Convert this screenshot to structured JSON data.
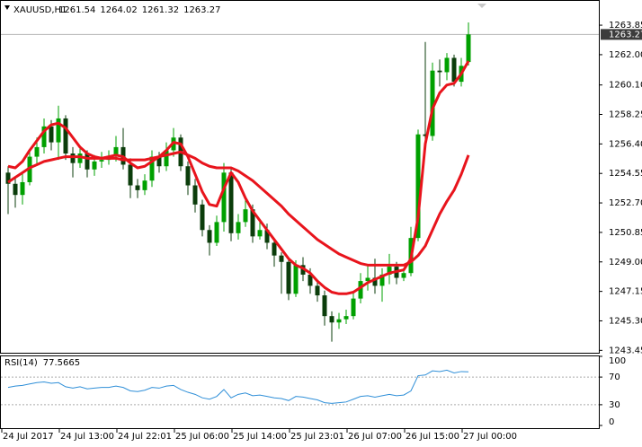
{
  "chart_data": {
    "type": "candlestick",
    "title": "XAUUSD,H1",
    "categories": [
      "24 Jul 2017",
      null,
      null,
      null,
      null,
      null,
      null,
      null,
      "24 Jul 13:00",
      null,
      null,
      null,
      null,
      null,
      null,
      null,
      "24 Jul 22:01",
      null,
      null,
      null,
      null,
      null,
      null,
      null,
      "25 Jul 06:00",
      null,
      null,
      null,
      null,
      null,
      null,
      null,
      "25 Jul 14:00",
      null,
      null,
      null,
      null,
      null,
      null,
      null,
      "25 Jul 23:01",
      null,
      null,
      null,
      null,
      null,
      null,
      null,
      "26 Jul 07:00",
      null,
      null,
      null,
      null,
      null,
      null,
      null,
      "26 Jul 15:00",
      null,
      null,
      null,
      null,
      null,
      null,
      null,
      "27 Jul 00:00"
    ],
    "open": [
      1254.6,
      1253.9,
      1253.2,
      1254.0,
      1255.6,
      1256.2,
      1257.5,
      1256.5,
      1258.0,
      1255.8,
      1255.2,
      1255.8,
      1254.8,
      1255.3,
      1255.4,
      1255.6,
      1256.2,
      1255.1,
      1253.8,
      1253.5,
      1254.1,
      1255.6,
      1255.0,
      1256.0,
      1256.8,
      1255.0,
      1253.8,
      1252.6,
      1251.0,
      1250.2,
      1251.5,
      1254.6,
      1250.8,
      1251.5,
      1252.3,
      1250.6,
      1251.0,
      1250.2,
      1249.4,
      1249.0,
      1247.0,
      1248.8,
      1248.2,
      1247.5,
      1246.9,
      1245.6,
      1245.2,
      1245.4,
      1245.6,
      1246.7,
      1247.8,
      1248.0,
      1247.5,
      1248.2,
      1248.7,
      1248.0,
      1248.3,
      1250.5,
      1257.0,
      1256.9,
      1261.0,
      1260.9,
      1261.8,
      1260.3,
      1261.54
    ],
    "high": [
      1255.0,
      1254.3,
      1254.6,
      1256.1,
      1256.8,
      1258.0,
      1257.9,
      1258.8,
      1258.2,
      1256.2,
      1256.3,
      1256.0,
      1255.7,
      1255.9,
      1256.0,
      1256.9,
      1257.4,
      1255.5,
      1254.2,
      1254.5,
      1256.0,
      1255.9,
      1256.5,
      1257.4,
      1257.0,
      1255.3,
      1254.2,
      1252.9,
      1251.3,
      1251.9,
      1255.2,
      1254.9,
      1252.0,
      1252.9,
      1252.6,
      1251.6,
      1251.4,
      1250.4,
      1249.6,
      1249.3,
      1249.1,
      1249.3,
      1248.6,
      1247.8,
      1247.2,
      1245.9,
      1245.8,
      1246.0,
      1247.1,
      1248.3,
      1248.8,
      1249.2,
      1248.6,
      1249.5,
      1249.0,
      1248.6,
      1251.2,
      1257.3,
      1262.8,
      1261.5,
      1261.7,
      1262.1,
      1262.0,
      1261.8,
      1264.02
    ],
    "low": [
      1252.0,
      1252.4,
      1252.6,
      1253.8,
      1255.1,
      1255.8,
      1256.0,
      1255.4,
      1255.4,
      1254.3,
      1254.9,
      1254.3,
      1254.4,
      1254.9,
      1255.1,
      1255.3,
      1254.8,
      1253.0,
      1253.0,
      1253.2,
      1253.7,
      1254.6,
      1254.7,
      1255.6,
      1254.7,
      1253.2,
      1252.1,
      1250.6,
      1249.4,
      1250.0,
      1250.9,
      1250.3,
      1250.4,
      1251.2,
      1250.2,
      1250.4,
      1249.8,
      1248.7,
      1247.0,
      1246.6,
      1246.8,
      1247.8,
      1247.0,
      1246.5,
      1245.0,
      1244.0,
      1244.8,
      1245.1,
      1245.4,
      1246.4,
      1247.2,
      1247.0,
      1246.5,
      1247.6,
      1247.6,
      1247.8,
      1248.1,
      1250.3,
      1256.3,
      1256.6,
      1260.0,
      1260.4,
      1260.0,
      1260.0,
      1261.32
    ],
    "close": [
      1253.9,
      1253.2,
      1254.0,
      1255.6,
      1256.2,
      1257.5,
      1256.5,
      1258.0,
      1255.8,
      1255.2,
      1255.8,
      1254.8,
      1255.3,
      1255.4,
      1255.6,
      1256.2,
      1255.1,
      1253.8,
      1253.5,
      1254.1,
      1255.6,
      1255.0,
      1256.0,
      1256.8,
      1255.0,
      1253.8,
      1252.6,
      1251.0,
      1250.2,
      1251.5,
      1254.6,
      1250.8,
      1251.5,
      1252.3,
      1250.6,
      1251.0,
      1250.2,
      1249.4,
      1249.0,
      1247.0,
      1248.8,
      1248.2,
      1247.5,
      1246.9,
      1245.6,
      1245.2,
      1245.4,
      1245.6,
      1246.7,
      1247.8,
      1248.0,
      1247.5,
      1248.2,
      1248.7,
      1248.0,
      1248.3,
      1250.5,
      1257.0,
      1256.9,
      1261.0,
      1260.9,
      1261.8,
      1260.3,
      1261.3,
      1263.27
    ],
    "up_color": "#00a000",
    "down_color": "#0b3d0b",
    "series": [
      {
        "color": "#e8141c",
        "values": [
          1255.0,
          1254.9,
          1255.3,
          1256.0,
          1256.6,
          1257.2,
          1257.6,
          1257.7,
          1257.4,
          1256.8,
          1256.2,
          1255.8,
          1255.6,
          1255.5,
          1255.6,
          1255.7,
          1255.6,
          1255.2,
          1254.9,
          1255.0,
          1255.3,
          1255.6,
          1256.0,
          1256.5,
          1256.4,
          1255.6,
          1254.5,
          1253.4,
          1252.6,
          1252.5,
          1253.6,
          1254.6,
          1254.0,
          1253.0,
          1252.2,
          1251.6,
          1251.0,
          1250.4,
          1249.8,
          1249.2,
          1248.8,
          1248.6,
          1248.3,
          1247.8,
          1247.4,
          1247.1,
          1247.0,
          1247.0,
          1247.1,
          1247.4,
          1247.7,
          1247.9,
          1248.1,
          1248.3,
          1248.4,
          1248.5,
          1249.2,
          1251.8,
          1256.4,
          1258.6,
          1259.6,
          1260.1,
          1260.2,
          1260.8,
          1261.6
        ]
      },
      {
        "color": "#e8141c",
        "values": [
          1254.0,
          1254.3,
          1254.6,
          1254.9,
          1255.1,
          1255.3,
          1255.4,
          1255.5,
          1255.6,
          1255.6,
          1255.6,
          1255.5,
          1255.5,
          1255.5,
          1255.5,
          1255.5,
          1255.4,
          1255.4,
          1255.4,
          1255.4,
          1255.5,
          1255.6,
          1255.7,
          1255.8,
          1255.9,
          1255.7,
          1255.5,
          1255.2,
          1255.0,
          1254.9,
          1254.9,
          1254.9,
          1254.7,
          1254.4,
          1254.1,
          1253.7,
          1253.3,
          1252.9,
          1252.5,
          1252.0,
          1251.6,
          1251.2,
          1250.8,
          1250.4,
          1250.1,
          1249.8,
          1249.5,
          1249.3,
          1249.1,
          1248.9,
          1248.8,
          1248.8,
          1248.8,
          1248.8,
          1248.8,
          1248.8,
          1249.0,
          1249.4,
          1250.0,
          1251.0,
          1252.0,
          1252.8,
          1253.5,
          1254.5,
          1255.7
        ]
      }
    ],
    "ylim": [
      1243.3,
      1265.43
    ],
    "yticks": [
      1263.85,
      {
        "value": 1262,
        "label": "1262.00"
      },
      {
        "value": 1260.1,
        "label": "1260.10"
      },
      1258.25,
      {
        "value": 1256.4,
        "label": "1256.40"
      },
      1254.55,
      {
        "value": 1252.7,
        "label": "1252.70"
      },
      1250.85,
      {
        "value": 1249,
        "label": "1249.00"
      },
      1247.15,
      {
        "value": 1245.3,
        "label": "1245.30"
      },
      1243.45
    ],
    "rsi_label": "RSI(14)",
    "rsi_color": "#2f8fd8",
    "rsi": [
      55,
      57,
      58,
      60,
      62,
      63,
      61,
      62,
      56,
      54,
      56,
      53,
      54,
      55,
      55,
      57,
      55,
      50,
      49,
      51,
      55,
      54,
      57,
      58,
      52,
      48,
      45,
      40,
      38,
      42,
      52,
      40,
      45,
      47,
      43,
      44,
      42,
      40,
      39,
      36,
      42,
      41,
      39,
      37,
      33,
      32,
      33,
      34,
      38,
      42,
      43,
      41,
      43,
      45,
      43,
      44,
      50,
      72,
      73,
      79,
      78,
      80,
      76,
      78,
      77.5665
    ],
    "rsi_ylim": [
      0,
      100
    ],
    "rsi_yticks": [
      100,
      70,
      30,
      0
    ]
  }
}
